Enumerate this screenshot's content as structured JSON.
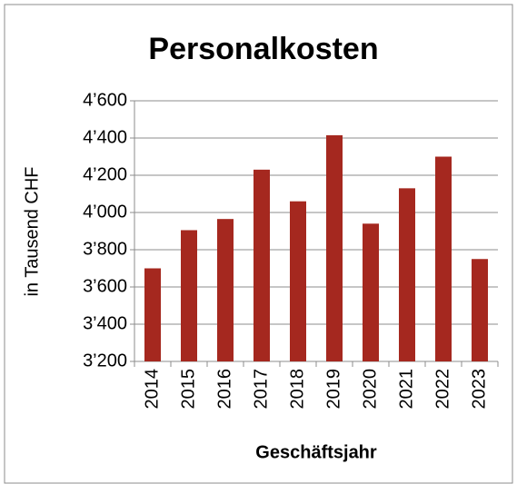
{
  "chart_data": {
    "type": "bar",
    "title": "Personalkosten",
    "y_label": "in Tausend CHF",
    "x_label": "Geschäftsjahr",
    "categories": [
      "2014",
      "2015",
      "2016",
      "2017",
      "2018",
      "2019",
      "2020",
      "2021",
      "2022",
      "2023"
    ],
    "values": [
      3700,
      3905,
      3965,
      4230,
      4060,
      4415,
      3940,
      4130,
      4300,
      3750
    ],
    "color": "#a5281f",
    "ylim": [
      3200,
      4600
    ],
    "yticks": [
      {
        "value": 3200,
        "label": "3’200"
      },
      {
        "value": 3400,
        "label": "3’400"
      },
      {
        "value": 3600,
        "label": "3’600"
      },
      {
        "value": 3800,
        "label": "3’800"
      },
      {
        "value": 4000,
        "label": "4’000"
      },
      {
        "value": 4200,
        "label": "4’200"
      },
      {
        "value": 4400,
        "label": "4’400"
      },
      {
        "value": 4600,
        "label": "4’600"
      }
    ],
    "grid": true
  }
}
